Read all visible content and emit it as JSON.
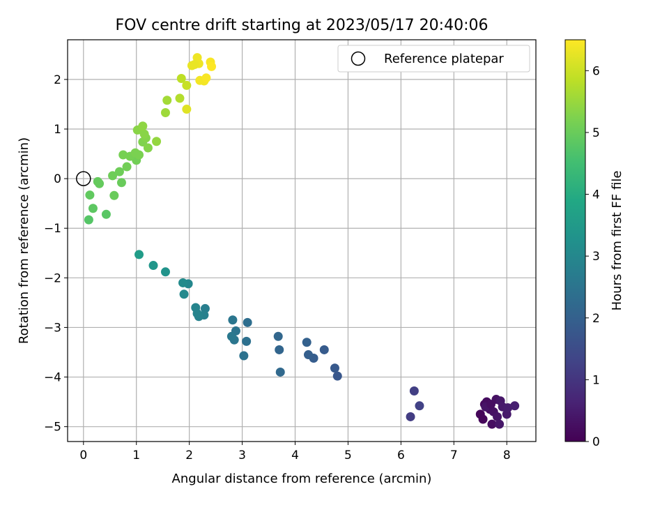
{
  "chart_data": {
    "type": "scatter",
    "title": "FOV centre drift starting at 2023/05/17 20:40:06",
    "xlabel": "Angular distance from reference (arcmin)",
    "ylabel": "Rotation from reference (arcmin)",
    "xlim": [
      -0.3,
      8.55
    ],
    "ylim": [
      -5.3,
      2.8
    ],
    "xticks": [
      0,
      1,
      2,
      3,
      4,
      5,
      6,
      7,
      8
    ],
    "yticks": [
      -5,
      -4,
      -3,
      -2,
      -1,
      0,
      1,
      2
    ],
    "grid": true,
    "legend": {
      "position": "top-right",
      "entries": [
        "Reference platepar"
      ]
    },
    "reference_point": {
      "x": 0,
      "y": 0
    },
    "colorbar": {
      "label": "Hours from first FF file",
      "colormap": "viridis",
      "range": [
        0,
        6.5
      ],
      "ticks": [
        0,
        1,
        2,
        3,
        4,
        5,
        6
      ]
    },
    "points": [
      {
        "x": 7.5,
        "y": -4.75,
        "h": 0.1
      },
      {
        "x": 7.55,
        "y": -4.85,
        "h": 0.1
      },
      {
        "x": 7.58,
        "y": -4.55,
        "h": 0.15
      },
      {
        "x": 7.62,
        "y": -4.5,
        "h": 0.2
      },
      {
        "x": 7.68,
        "y": -4.65,
        "h": 0.2
      },
      {
        "x": 7.72,
        "y": -4.95,
        "h": 0.25
      },
      {
        "x": 7.75,
        "y": -4.7,
        "h": 0.3
      },
      {
        "x": 7.8,
        "y": -4.45,
        "h": 0.3
      },
      {
        "x": 7.82,
        "y": -4.8,
        "h": 0.35
      },
      {
        "x": 7.86,
        "y": -4.95,
        "h": 0.4
      },
      {
        "x": 7.88,
        "y": -4.48,
        "h": 0.4
      },
      {
        "x": 7.92,
        "y": -4.6,
        "h": 0.45
      },
      {
        "x": 8.0,
        "y": -4.75,
        "h": 0.45
      },
      {
        "x": 8.02,
        "y": -4.62,
        "h": 0.5
      },
      {
        "x": 8.15,
        "y": -4.58,
        "h": 0.55
      },
      {
        "x": 7.6,
        "y": -4.6,
        "h": 0.35
      },
      {
        "x": 7.7,
        "y": -4.55,
        "h": 0.25
      },
      {
        "x": 6.18,
        "y": -4.8,
        "h": 1.15
      },
      {
        "x": 6.25,
        "y": -4.28,
        "h": 1.2
      },
      {
        "x": 6.35,
        "y": -4.58,
        "h": 1.25
      },
      {
        "x": 4.8,
        "y": -3.98,
        "h": 1.75
      },
      {
        "x": 4.75,
        "y": -3.82,
        "h": 1.8
      },
      {
        "x": 4.55,
        "y": -3.45,
        "h": 1.85
      },
      {
        "x": 4.35,
        "y": -3.62,
        "h": 1.9
      },
      {
        "x": 4.25,
        "y": -3.55,
        "h": 1.95
      },
      {
        "x": 4.22,
        "y": -3.3,
        "h": 2.0
      },
      {
        "x": 3.7,
        "y": -3.45,
        "h": 2.1
      },
      {
        "x": 3.68,
        "y": -3.18,
        "h": 2.15
      },
      {
        "x": 3.72,
        "y": -3.9,
        "h": 2.2
      },
      {
        "x": 3.1,
        "y": -2.9,
        "h": 2.35
      },
      {
        "x": 3.08,
        "y": -3.28,
        "h": 2.4
      },
      {
        "x": 3.03,
        "y": -3.57,
        "h": 2.45
      },
      {
        "x": 2.88,
        "y": -3.07,
        "h": 2.5
      },
      {
        "x": 2.82,
        "y": -2.85,
        "h": 2.55
      },
      {
        "x": 2.85,
        "y": -3.25,
        "h": 2.55
      },
      {
        "x": 2.8,
        "y": -3.18,
        "h": 2.6
      },
      {
        "x": 2.3,
        "y": -2.62,
        "h": 2.75
      },
      {
        "x": 2.28,
        "y": -2.75,
        "h": 2.8
      },
      {
        "x": 2.18,
        "y": -2.78,
        "h": 2.85
      },
      {
        "x": 2.12,
        "y": -2.6,
        "h": 2.9
      },
      {
        "x": 2.15,
        "y": -2.72,
        "h": 2.9
      },
      {
        "x": 1.98,
        "y": -2.12,
        "h": 3.0
      },
      {
        "x": 1.9,
        "y": -2.33,
        "h": 3.05
      },
      {
        "x": 1.88,
        "y": -2.1,
        "h": 3.1
      },
      {
        "x": 1.55,
        "y": -1.88,
        "h": 3.3
      },
      {
        "x": 1.32,
        "y": -1.75,
        "h": 3.4
      },
      {
        "x": 1.05,
        "y": -1.53,
        "h": 3.55
      },
      {
        "x": 0.1,
        "y": -0.83,
        "h": 4.75
      },
      {
        "x": 0.43,
        "y": -0.72,
        "h": 4.8
      },
      {
        "x": 0.18,
        "y": -0.6,
        "h": 4.85
      },
      {
        "x": 0.12,
        "y": -0.33,
        "h": 4.9
      },
      {
        "x": 0.27,
        "y": -0.06,
        "h": 4.95
      },
      {
        "x": 0.3,
        "y": -0.1,
        "h": 4.95
      },
      {
        "x": 0.58,
        "y": -0.34,
        "h": 5.0
      },
      {
        "x": 0.72,
        "y": -0.08,
        "h": 5.0
      },
      {
        "x": 0.55,
        "y": 0.06,
        "h": 5.05
      },
      {
        "x": 0.68,
        "y": 0.14,
        "h": 5.05
      },
      {
        "x": 0.82,
        "y": 0.24,
        "h": 5.1
      },
      {
        "x": 1.0,
        "y": 0.37,
        "h": 5.1
      },
      {
        "x": 0.75,
        "y": 0.48,
        "h": 5.15
      },
      {
        "x": 0.88,
        "y": 0.45,
        "h": 5.15
      },
      {
        "x": 0.98,
        "y": 0.52,
        "h": 5.2
      },
      {
        "x": 1.05,
        "y": 0.48,
        "h": 5.2
      },
      {
        "x": 1.12,
        "y": 0.74,
        "h": 5.25
      },
      {
        "x": 1.22,
        "y": 0.62,
        "h": 5.3
      },
      {
        "x": 1.18,
        "y": 0.82,
        "h": 5.3
      },
      {
        "x": 1.15,
        "y": 0.9,
        "h": 5.35
      },
      {
        "x": 1.02,
        "y": 0.98,
        "h": 5.35
      },
      {
        "x": 1.12,
        "y": 1.06,
        "h": 5.4
      },
      {
        "x": 1.38,
        "y": 0.75,
        "h": 5.45
      },
      {
        "x": 1.55,
        "y": 1.33,
        "h": 5.55
      },
      {
        "x": 1.58,
        "y": 1.58,
        "h": 5.6
      },
      {
        "x": 1.82,
        "y": 1.62,
        "h": 5.75
      },
      {
        "x": 1.85,
        "y": 2.02,
        "h": 5.85
      },
      {
        "x": 1.95,
        "y": 1.88,
        "h": 5.95
      },
      {
        "x": 1.95,
        "y": 1.4,
        "h": 6.2
      },
      {
        "x": 2.05,
        "y": 2.28,
        "h": 6.3
      },
      {
        "x": 2.15,
        "y": 2.44,
        "h": 6.35
      },
      {
        "x": 2.18,
        "y": 2.32,
        "h": 6.35
      },
      {
        "x": 2.2,
        "y": 1.98,
        "h": 6.4
      },
      {
        "x": 2.28,
        "y": 1.97,
        "h": 6.4
      },
      {
        "x": 2.32,
        "y": 2.03,
        "h": 6.45
      },
      {
        "x": 2.4,
        "y": 2.35,
        "h": 6.45
      },
      {
        "x": 2.42,
        "y": 2.26,
        "h": 6.5
      },
      {
        "x": 2.1,
        "y": 2.3,
        "h": 6.3
      }
    ]
  }
}
